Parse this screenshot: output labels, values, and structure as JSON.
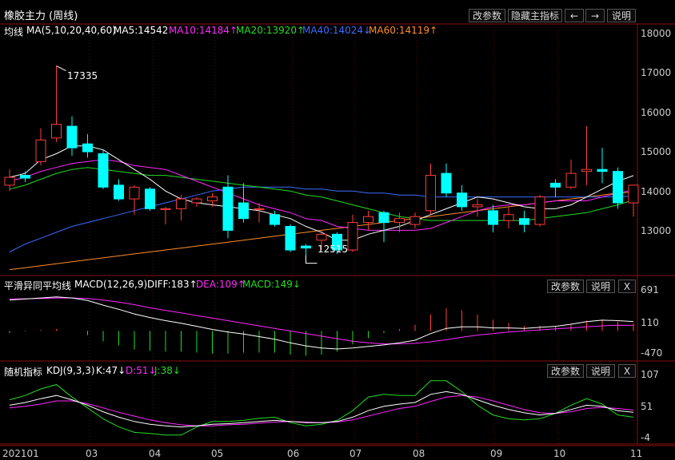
{
  "window": {
    "title": "橡胶主力 (周线)"
  },
  "toolbar": {
    "params": "改参数",
    "hide_main": "隐藏主指标",
    "prev": "←",
    "next": "→",
    "help": "说明"
  },
  "main_panel": {
    "label": "均线",
    "indicator": "MA(5,10,20,40,60)",
    "ma5": "MA5:14542",
    "ma10": "MA10:14184↑",
    "ma20": "MA20:13920↑",
    "ma40": "MA40:14024↓",
    "ma60": "MA60:14119↑",
    "high_mark": "17335",
    "low_mark": "12515",
    "yticks": [
      "18000",
      "17000",
      "16000",
      "15000",
      "14000",
      "13000"
    ]
  },
  "macd_panel": {
    "title": "平滑异同平均线",
    "indicator": "MACD(12,26,9)",
    "diff": "DIFF:183↑",
    "dea": "DEA:109↑",
    "macd": "MACD:149↓",
    "params": "改参数",
    "help": "说明",
    "close": "X",
    "yticks": [
      "691",
      "110",
      "-470"
    ]
  },
  "kdj_panel": {
    "title": "随机指标",
    "indicator": "KDJ(9,3,3)",
    "k": "K:47↓",
    "d": "D:51↓",
    "j": "J:38↓",
    "params": "改参数",
    "help": "说明",
    "close": "X",
    "yticks": [
      "107",
      "51",
      "-4"
    ]
  },
  "xaxis": {
    "labels": [
      "202101",
      "03",
      "04",
      "05",
      "06",
      "07",
      "08",
      "09",
      "10",
      "11"
    ]
  },
  "colors": {
    "up": "#ff3c3c",
    "down": "#00ffff",
    "ma5": "#ffffff",
    "ma10": "#ff2aff",
    "ma20": "#22dd22",
    "ma40": "#3a6cff",
    "ma60": "#ff8c28"
  },
  "chart_data": {
    "type": "candlestick",
    "ylim": [
      12000,
      18200
    ],
    "candles": [
      {
        "o": 14300,
        "h": 14700,
        "l": 14150,
        "c": 14500
      },
      {
        "o": 14550,
        "h": 14650,
        "l": 14380,
        "c": 14480
      },
      {
        "o": 14900,
        "h": 15750,
        "l": 14800,
        "c": 15450
      },
      {
        "o": 15500,
        "h": 17335,
        "l": 15400,
        "c": 15850
      },
      {
        "o": 15800,
        "h": 16050,
        "l": 15050,
        "c": 15250
      },
      {
        "o": 15350,
        "h": 15600,
        "l": 15000,
        "c": 15150
      },
      {
        "o": 15100,
        "h": 15200,
        "l": 14200,
        "c": 14250
      },
      {
        "o": 14300,
        "h": 14450,
        "l": 13900,
        "c": 13950
      },
      {
        "o": 13950,
        "h": 14300,
        "l": 13550,
        "c": 14250
      },
      {
        "o": 14200,
        "h": 14250,
        "l": 13650,
        "c": 13700
      },
      {
        "o": 13700,
        "h": 13750,
        "l": 13300,
        "c": 13700
      },
      {
        "o": 13700,
        "h": 14050,
        "l": 13400,
        "c": 13950
      },
      {
        "o": 13850,
        "h": 14000,
        "l": 13750,
        "c": 13950
      },
      {
        "o": 13900,
        "h": 14100,
        "l": 13750,
        "c": 14000
      },
      {
        "o": 14250,
        "h": 14550,
        "l": 12950,
        "c": 13150
      },
      {
        "o": 13850,
        "h": 14350,
        "l": 13350,
        "c": 13450
      },
      {
        "o": 13700,
        "h": 13850,
        "l": 13350,
        "c": 13700
      },
      {
        "o": 13550,
        "h": 13650,
        "l": 13250,
        "c": 13300
      },
      {
        "o": 13250,
        "h": 13300,
        "l": 12600,
        "c": 12650
      },
      {
        "o": 12750,
        "h": 12800,
        "l": 12515,
        "c": 12700
      },
      {
        "o": 12900,
        "h": 13150,
        "l": 12650,
        "c": 13050
      },
      {
        "o": 13050,
        "h": 13100,
        "l": 12550,
        "c": 12650
      },
      {
        "o": 12650,
        "h": 13550,
        "l": 12600,
        "c": 13350
      },
      {
        "o": 13350,
        "h": 13650,
        "l": 13150,
        "c": 13500
      },
      {
        "o": 13600,
        "h": 13650,
        "l": 12850,
        "c": 13350
      },
      {
        "o": 13350,
        "h": 13600,
        "l": 13100,
        "c": 13450
      },
      {
        "o": 13300,
        "h": 13600,
        "l": 13200,
        "c": 13500
      },
      {
        "o": 13650,
        "h": 14850,
        "l": 13550,
        "c": 14550
      },
      {
        "o": 14600,
        "h": 14850,
        "l": 14000,
        "c": 14100
      },
      {
        "o": 14100,
        "h": 14300,
        "l": 13650,
        "c": 13750
      },
      {
        "o": 13750,
        "h": 13950,
        "l": 13500,
        "c": 13800
      },
      {
        "o": 13650,
        "h": 13800,
        "l": 13100,
        "c": 13300
      },
      {
        "o": 13400,
        "h": 13750,
        "l": 13200,
        "c": 13550
      },
      {
        "o": 13450,
        "h": 13650,
        "l": 13100,
        "c": 13300
      },
      {
        "o": 13300,
        "h": 14050,
        "l": 13250,
        "c": 14000
      },
      {
        "o": 14350,
        "h": 14450,
        "l": 14000,
        "c": 14250
      },
      {
        "o": 14250,
        "h": 14950,
        "l": 14200,
        "c": 14600
      },
      {
        "o": 14650,
        "h": 15800,
        "l": 14300,
        "c": 14700
      },
      {
        "o": 14700,
        "h": 15250,
        "l": 14350,
        "c": 14650
      },
      {
        "o": 14650,
        "h": 14750,
        "l": 13700,
        "c": 13850
      },
      {
        "o": 13850,
        "h": 14300,
        "l": 13500,
        "c": 14300
      }
    ],
    "ma5": [
      14500,
      14600,
      14950,
      15100,
      15300,
      15300,
      15200,
      14950,
      14700,
      14450,
      14150,
      13950,
      13850,
      13800,
      13750,
      13700,
      13650,
      13550,
      13450,
      13250,
      13100,
      12900,
      12900,
      13050,
      13150,
      13250,
      13400,
      13550,
      13700,
      13850,
      14000,
      13950,
      13850,
      13750,
      13700,
      13700,
      13800,
      14000,
      14200,
      14400,
      14542
    ],
    "ma10": [
      14400,
      14500,
      14650,
      14750,
      14850,
      14900,
      14950,
      14900,
      14800,
      14750,
      14700,
      14550,
      14400,
      14250,
      14100,
      13950,
      13800,
      13700,
      13600,
      13450,
      13400,
      13250,
      13200,
      13150,
      13150,
      13150,
      13150,
      13200,
      13350,
      13500,
      13650,
      13750,
      13800,
      13800,
      13850,
      13900,
      13900,
      13900,
      14000,
      14100,
      14184
    ],
    "ma20": [
      14200,
      14300,
      14450,
      14600,
      14700,
      14750,
      14700,
      14650,
      14600,
      14550,
      14550,
      14500,
      14450,
      14400,
      14350,
      14300,
      14250,
      14200,
      14150,
      14050,
      14000,
      13900,
      13800,
      13700,
      13600,
      13500,
      13450,
      13400,
      13400,
      13400,
      13400,
      13400,
      13400,
      13400,
      13450,
      13500,
      13550,
      13600,
      13700,
      13800,
      13920
    ],
    "ma40": [
      12600,
      12800,
      12950,
      13100,
      13250,
      13350,
      13450,
      13550,
      13650,
      13750,
      13850,
      13950,
      14050,
      14150,
      14200,
      14250,
      14250,
      14250,
      14250,
      14200,
      14200,
      14150,
      14150,
      14100,
      14100,
      14050,
      14050,
      14000,
      14000,
      14000,
      14000,
      14000,
      14000,
      14000,
      14000,
      14000,
      14000,
      14000,
      14000,
      14000,
      14024
    ],
    "ma60": [
      12150,
      12200,
      12250,
      12300,
      12350,
      12400,
      12450,
      12500,
      12550,
      12600,
      12650,
      12700,
      12750,
      12800,
      12850,
      12900,
      12950,
      13000,
      13050,
      13100,
      13150,
      13200,
      13250,
      13300,
      13350,
      13400,
      13450,
      13500,
      13550,
      13600,
      13650,
      13700,
      13750,
      13800,
      13850,
      13900,
      13950,
      14000,
      14050,
      14100,
      14119
    ],
    "macd": {
      "ylim": [
        -520,
        750
      ],
      "diff": [
        600,
        620,
        640,
        660,
        640,
        590,
        500,
        420,
        330,
        260,
        200,
        150,
        90,
        30,
        -20,
        -60,
        -110,
        -160,
        -230,
        -290,
        -330,
        -350,
        -330,
        -300,
        -270,
        -230,
        -180,
        -50,
        50,
        80,
        80,
        60,
        60,
        50,
        70,
        90,
        130,
        180,
        210,
        200,
        183
      ],
      "dea": [
        620,
        625,
        630,
        640,
        640,
        630,
        600,
        560,
        510,
        450,
        400,
        350,
        300,
        250,
        200,
        150,
        100,
        50,
        0,
        -50,
        -100,
        -150,
        -200,
        -230,
        -250,
        -250,
        -240,
        -210,
        -170,
        -120,
        -80,
        -50,
        -20,
        0,
        20,
        40,
        60,
        80,
        100,
        110,
        109
      ],
      "hist": [
        -40,
        -10,
        20,
        40,
        0,
        -80,
        -200,
        -280,
        -360,
        -380,
        -400,
        -400,
        -420,
        -440,
        -440,
        -420,
        -420,
        -420,
        -460,
        -480,
        -460,
        -400,
        -260,
        -140,
        -40,
        40,
        120,
        320,
        440,
        400,
        320,
        220,
        160,
        100,
        100,
        100,
        140,
        200,
        220,
        180,
        149
      ]
    },
    "kdj": {
      "ylim": [
        -10,
        115
      ],
      "k": [
        60,
        65,
        72,
        78,
        70,
        60,
        48,
        38,
        30,
        25,
        22,
        20,
        22,
        25,
        26,
        28,
        30,
        32,
        30,
        28,
        28,
        30,
        38,
        50,
        58,
        62,
        65,
        80,
        85,
        80,
        70,
        60,
        52,
        46,
        42,
        45,
        52,
        60,
        58,
        50,
        47
      ],
      "d": [
        55,
        58,
        62,
        68,
        68,
        63,
        55,
        47,
        40,
        33,
        28,
        24,
        22,
        22,
        24,
        25,
        27,
        29,
        30,
        29,
        28,
        29,
        33,
        40,
        47,
        54,
        58,
        67,
        75,
        78,
        75,
        68,
        60,
        52,
        46,
        45,
        48,
        54,
        56,
        54,
        51
      ],
      "j": [
        70,
        78,
        90,
        98,
        75,
        55,
        35,
        20,
        10,
        8,
        5,
        5,
        20,
        30,
        30,
        32,
        36,
        38,
        28,
        22,
        25,
        32,
        50,
        75,
        80,
        78,
        78,
        105,
        105,
        85,
        60,
        42,
        35,
        33,
        35,
        45,
        60,
        72,
        62,
        42,
        38
      ]
    }
  }
}
